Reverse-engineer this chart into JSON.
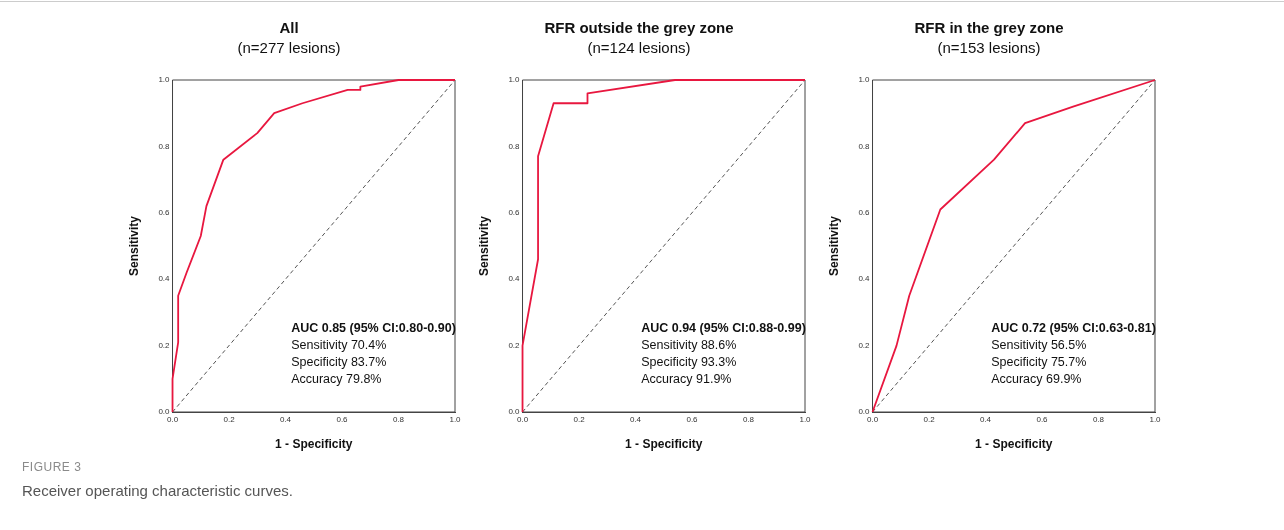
{
  "chart_data": [
    {
      "type": "line",
      "title": "All",
      "subtitle": "(n=277 lesions)",
      "xlabel": "1 - Specificity",
      "ylabel": "Sensitivity",
      "marker": "none",
      "grid": false,
      "legend": false,
      "xlim": [
        0,
        1
      ],
      "ylim": [
        0,
        1
      ],
      "xticks": [
        {
          "value": 0,
          "label": "0.0"
        },
        {
          "value": 0.2,
          "label": "0.2"
        },
        {
          "value": 0.4,
          "label": "0.4"
        },
        {
          "value": 0.6,
          "label": "0.6"
        },
        {
          "value": 0.8,
          "label": "0.8"
        },
        {
          "value": 1,
          "label": "1.0"
        }
      ],
      "yticks": [
        {
          "value": 0,
          "label": "0.0"
        },
        {
          "value": 0.2,
          "label": "0.2"
        },
        {
          "value": 0.4,
          "label": "0.4"
        },
        {
          "value": 0.6,
          "label": "0.6"
        },
        {
          "value": 0.8,
          "label": "0.8"
        },
        {
          "value": 1,
          "label": "1.0"
        }
      ],
      "series": [
        {
          "type": "line",
          "color": "#e8173f",
          "line_style": "solid",
          "x": [
            0,
            0,
            0.02,
            0.02,
            0.05,
            0.1,
            0.12,
            0.18,
            0.3,
            0.36,
            0.46,
            0.62,
            0.665,
            0.665,
            0.8,
            1
          ],
          "values": [
            0,
            0.1,
            0.21,
            0.35,
            0.42,
            0.53,
            0.62,
            0.76,
            0.84,
            0.9,
            0.93,
            0.97,
            0.97,
            0.98,
            1,
            1
          ]
        },
        {
          "type": "line",
          "color": "#555555",
          "line_style": "dashed",
          "x": [
            0,
            1
          ],
          "values": [
            0,
            1
          ]
        }
      ],
      "annotations": [
        "AUC 0.85 (95% CI:0.80-0.90)",
        "Sensitivity 70.4%",
        "Specificity 83.7%",
        "Accuracy 79.8%"
      ]
    },
    {
      "type": "line",
      "title": "RFR outside the grey zone",
      "subtitle": "(n=124 lesions)",
      "xlabel": "1 - Specificity",
      "ylabel": "Sensitivity",
      "marker": "none",
      "grid": false,
      "legend": false,
      "xlim": [
        0,
        1
      ],
      "ylim": [
        0,
        1
      ],
      "xticks": [
        {
          "value": 0,
          "label": "0.0"
        },
        {
          "value": 0.2,
          "label": "0.2"
        },
        {
          "value": 0.4,
          "label": "0.4"
        },
        {
          "value": 0.6,
          "label": "0.6"
        },
        {
          "value": 0.8,
          "label": "0.8"
        },
        {
          "value": 1,
          "label": "1.0"
        }
      ],
      "yticks": [
        {
          "value": 0,
          "label": "0.0"
        },
        {
          "value": 0.2,
          "label": "0.2"
        },
        {
          "value": 0.4,
          "label": "0.4"
        },
        {
          "value": 0.6,
          "label": "0.6"
        },
        {
          "value": 0.8,
          "label": "0.8"
        },
        {
          "value": 1,
          "label": "1.0"
        }
      ],
      "series": [
        {
          "type": "line",
          "color": "#e8173f",
          "line_style": "solid",
          "x": [
            0,
            0,
            0.055,
            0.055,
            0.11,
            0.23,
            0.23,
            0.54,
            1
          ],
          "values": [
            0,
            0.2,
            0.46,
            0.77,
            0.93,
            0.93,
            0.96,
            1,
            1
          ]
        },
        {
          "type": "line",
          "color": "#555555",
          "line_style": "dashed",
          "x": [
            0,
            1
          ],
          "values": [
            0,
            1
          ]
        }
      ],
      "annotations": [
        "AUC 0.94 (95% CI:0.88-0.99)",
        "Sensitivity 88.6%",
        "Specificity 93.3%",
        "Accuracy 91.9%"
      ]
    },
    {
      "type": "line",
      "title": "RFR in the grey zone",
      "subtitle": "(n=153 lesions)",
      "xlabel": "1 - Specificity",
      "ylabel": "Sensitivity",
      "marker": "none",
      "grid": false,
      "legend": false,
      "xlim": [
        0,
        1
      ],
      "ylim": [
        0,
        1
      ],
      "xticks": [
        {
          "value": 0,
          "label": "0.0"
        },
        {
          "value": 0.2,
          "label": "0.2"
        },
        {
          "value": 0.4,
          "label": "0.4"
        },
        {
          "value": 0.6,
          "label": "0.6"
        },
        {
          "value": 0.8,
          "label": "0.8"
        },
        {
          "value": 1,
          "label": "1.0"
        }
      ],
      "yticks": [
        {
          "value": 0,
          "label": "0.0"
        },
        {
          "value": 0.2,
          "label": "0.2"
        },
        {
          "value": 0.4,
          "label": "0.4"
        },
        {
          "value": 0.6,
          "label": "0.6"
        },
        {
          "value": 0.8,
          "label": "0.8"
        },
        {
          "value": 1,
          "label": "1.0"
        }
      ],
      "series": [
        {
          "type": "line",
          "color": "#e8173f",
          "line_style": "solid",
          "x": [
            0,
            0.085,
            0.13,
            0.24,
            0.43,
            0.54,
            0.71,
            1
          ],
          "values": [
            0,
            0.2,
            0.35,
            0.61,
            0.76,
            0.87,
            0.92,
            1
          ]
        },
        {
          "type": "line",
          "color": "#555555",
          "line_style": "dashed",
          "x": [
            0,
            1
          ],
          "values": [
            0,
            1
          ]
        }
      ],
      "annotations": [
        "AUC 0.72 (95% CI:0.63-0.81)",
        "Sensitivity 56.5%",
        "Specificity 75.7%",
        "Accuracy 69.9%"
      ]
    },
    {
      "type": "other",
      "title": "FIGURE 3",
      "subtitle": "Receiver operating characteristic curves."
    }
  ]
}
